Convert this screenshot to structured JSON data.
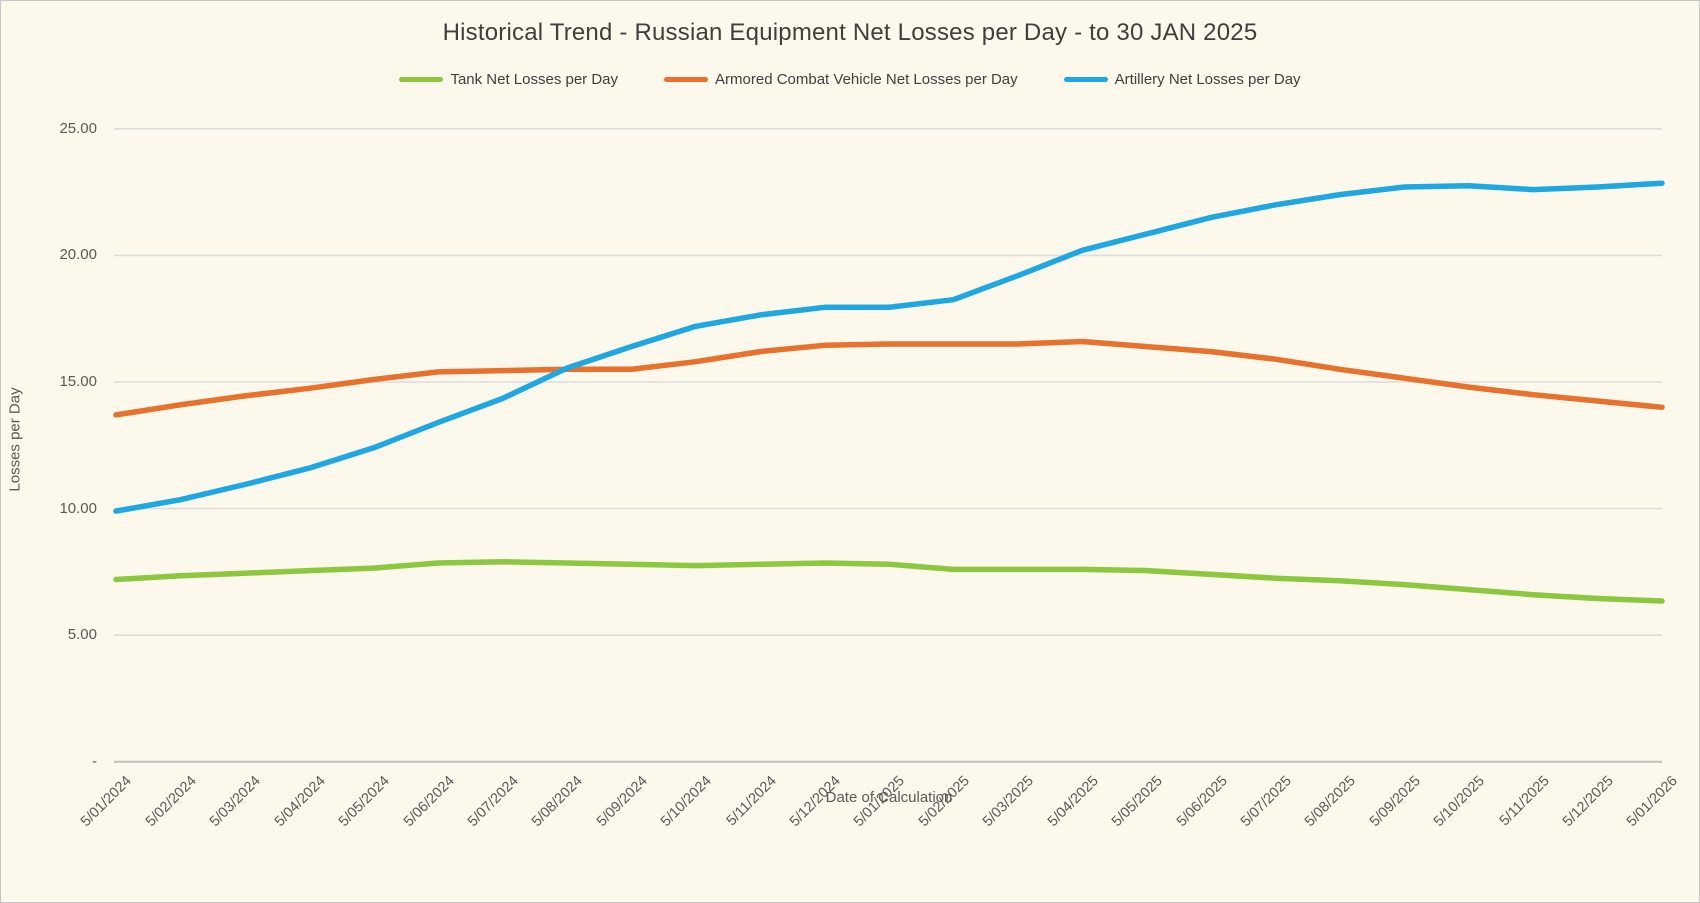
{
  "title": "Historical Trend - Russian Equipment Net Losses per Day - to 30 JAN 2025",
  "colors": {
    "background": "#FDF8EC",
    "title_text": "#3f3f3f",
    "axis_text": "#595959",
    "gridline": "#dcdcdc",
    "axis_line": "#bfbfbf",
    "tank": "#8DC63F",
    "acv": "#E8712E",
    "artillery": "#1EA7E1"
  },
  "legend": [
    {
      "label": "Tank Net Losses per Day",
      "color": "#8DC63F"
    },
    {
      "label": "Armored Combat Vehicle Net Losses per Day",
      "color": "#E8712E"
    },
    {
      "label": "Artillery Net Losses per Day",
      "color": "#1EA7E1"
    }
  ],
  "y_axis": {
    "title": "Losses per Day",
    "tick_labels": [
      "25.00",
      "20.00",
      "15.00",
      "10.00",
      "5.00",
      "-"
    ],
    "tick_values": [
      25,
      20,
      15,
      10,
      5,
      0
    ]
  },
  "x_axis": {
    "title": "Date of Calculation",
    "tick_labels": [
      "5/01/2024",
      "5/02/2024",
      "5/03/2024",
      "5/04/2024",
      "5/05/2024",
      "5/06/2024",
      "5/07/2024",
      "5/08/2024",
      "5/09/2024",
      "5/10/2024",
      "5/11/2024",
      "5/12/2024",
      "5/01/2025",
      "5/02/2025",
      "5/03/2025",
      "5/04/2025",
      "5/05/2025",
      "5/06/2025",
      "5/07/2025",
      "5/08/2025",
      "5/09/2025",
      "5/10/2025",
      "5/11/2025",
      "5/12/2025",
      "5/01/2026"
    ]
  },
  "chart_data": {
    "type": "line",
    "title": "Historical Trend - Russian Equipment Net Losses per Day - to 30 JAN 2025",
    "xlabel": "Date of Calculation",
    "ylabel": "Losses per Day",
    "ylim": [
      0,
      25
    ],
    "grid": true,
    "legend_position": "top",
    "x": [
      "5/01/2024",
      "5/02/2024",
      "5/03/2024",
      "5/04/2024",
      "5/05/2024",
      "5/06/2024",
      "5/07/2024",
      "5/08/2024",
      "5/09/2024",
      "5/10/2024",
      "5/11/2024",
      "5/12/2024",
      "5/01/2025",
      "5/02/2025",
      "5/03/2025",
      "5/04/2025",
      "5/05/2025",
      "5/06/2025",
      "5/07/2025",
      "5/08/2025",
      "5/09/2025",
      "5/10/2025",
      "5/11/2025",
      "5/12/2025",
      "5/01/2026"
    ],
    "series": [
      {
        "name": "Tank Net Losses per Day",
        "color": "#8DC63F",
        "values": [
          7.2,
          7.35,
          7.45,
          7.55,
          7.65,
          7.85,
          7.9,
          7.85,
          7.8,
          7.75,
          7.8,
          7.85,
          7.8,
          7.6,
          7.6,
          7.6,
          7.55,
          7.4,
          7.25,
          7.15,
          7.0,
          6.8,
          6.6,
          6.45,
          6.35
        ]
      },
      {
        "name": "Armored Combat Vehicle Net Losses per Day",
        "color": "#E8712E",
        "values": [
          13.7,
          14.1,
          14.45,
          14.75,
          15.1,
          15.4,
          15.45,
          15.5,
          15.5,
          15.8,
          16.2,
          16.45,
          16.5,
          16.5,
          16.5,
          16.6,
          16.4,
          16.2,
          15.9,
          15.5,
          15.15,
          14.8,
          14.5,
          14.25,
          14.0
        ]
      },
      {
        "name": "Artillery Net Losses per Day",
        "color": "#1EA7E1",
        "values": [
          9.9,
          10.35,
          10.95,
          11.6,
          12.4,
          13.4,
          14.35,
          15.55,
          16.4,
          17.2,
          17.65,
          17.95,
          17.95,
          18.25,
          19.2,
          20.2,
          20.85,
          21.5,
          22.0,
          22.4,
          22.7,
          22.75,
          22.6,
          22.7,
          22.85
        ]
      }
    ]
  }
}
